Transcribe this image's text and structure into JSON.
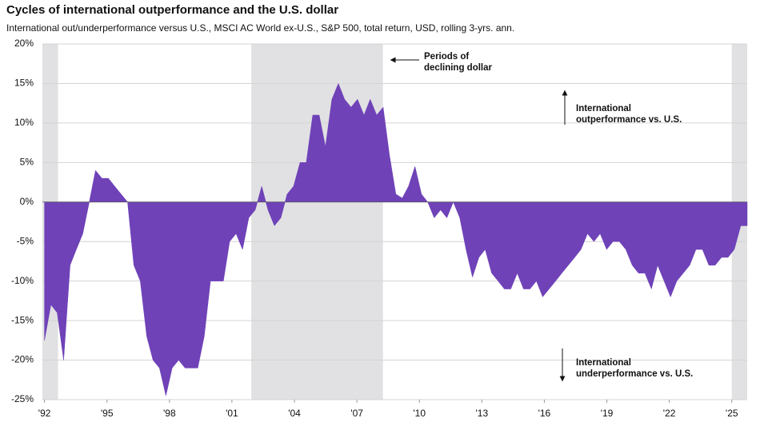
{
  "chart_data": {
    "type": "area",
    "title": "Cycles of international outperformance and the U.S. dollar",
    "subtitle": "International out/underperformance versus U.S., MSCI AC World ex-U.S., S&P 500, total return, USD, rolling 3-yrs. ann.",
    "annotations": [
      {
        "lines": [
          "Periods of",
          "declining dollar"
        ]
      },
      {
        "lines": [
          "International",
          "outperformance vs. U.S."
        ]
      },
      {
        "lines": [
          "International",
          "underperformance vs. U.S."
        ]
      }
    ],
    "shaded_periods": [
      [
        1991.9,
        1992.65
      ],
      [
        2001.93,
        2008.25
      ],
      [
        2025.0,
        2025.74
      ]
    ],
    "shade_color": "#e1e1e3",
    "color": "#6f42b8",
    "grid": true,
    "xlim": [
      1991.9,
      2025.74
    ],
    "ylim": [
      -25,
      20
    ],
    "xticks": [
      {
        "value": 1992,
        "label": "'92"
      },
      {
        "value": 1995,
        "label": "'95"
      },
      {
        "value": 1998,
        "label": "'98"
      },
      {
        "value": 2001,
        "label": "'01"
      },
      {
        "value": 2004,
        "label": "'04"
      },
      {
        "value": 2007,
        "label": "'07"
      },
      {
        "value": 2010,
        "label": "'10"
      },
      {
        "value": 2013,
        "label": "'13"
      },
      {
        "value": 2016,
        "label": "'16"
      },
      {
        "value": 2019,
        "label": "'19"
      },
      {
        "value": 2022,
        "label": "'22"
      },
      {
        "value": 2025,
        "label": "'25"
      }
    ],
    "yticks": [
      {
        "value": 20,
        "label": "20%"
      },
      {
        "value": 15,
        "label": "15%"
      },
      {
        "value": 10,
        "label": "10%"
      },
      {
        "value": 5,
        "label": "5%"
      },
      {
        "value": 0,
        "label": "0%"
      },
      {
        "value": -5,
        "label": "-5%"
      },
      {
        "value": -10,
        "label": "-10%"
      },
      {
        "value": -15,
        "label": "-15%"
      },
      {
        "value": -20,
        "label": "-20%"
      },
      {
        "value": -25,
        "label": "-25%"
      }
    ],
    "x": [
      1992.0,
      1992.31,
      1992.61,
      1992.92,
      1993.23,
      1993.53,
      1993.84,
      1994.15,
      1994.45,
      1994.76,
      1995.07,
      1995.37,
      1995.68,
      1995.99,
      1996.29,
      1996.6,
      1996.91,
      1997.21,
      1997.52,
      1997.83,
      1998.13,
      1998.44,
      1998.75,
      1999.05,
      1999.36,
      1999.67,
      1999.97,
      2000.28,
      2000.59,
      2000.89,
      2001.2,
      2001.51,
      2001.81,
      2002.12,
      2002.43,
      2002.73,
      2003.04,
      2003.35,
      2003.65,
      2003.96,
      2004.27,
      2004.57,
      2004.88,
      2005.19,
      2005.49,
      2005.8,
      2006.11,
      2006.41,
      2006.72,
      2007.03,
      2007.34,
      2007.64,
      2007.95,
      2008.26,
      2008.56,
      2008.87,
      2009.18,
      2009.48,
      2009.79,
      2010.1,
      2010.4,
      2010.71,
      2011.02,
      2011.32,
      2011.63,
      2011.94,
      2012.24,
      2012.55,
      2012.86,
      2013.16,
      2013.47,
      2013.78,
      2014.08,
      2014.39,
      2014.7,
      2015.0,
      2015.31,
      2015.62,
      2015.92,
      2016.23,
      2016.54,
      2016.84,
      2017.15,
      2017.46,
      2017.76,
      2018.07,
      2018.38,
      2018.68,
      2018.99,
      2019.3,
      2019.6,
      2019.91,
      2020.22,
      2020.52,
      2020.83,
      2021.14,
      2021.44,
      2021.75,
      2022.06,
      2022.36,
      2022.67,
      2022.98,
      2023.28,
      2023.59,
      2023.9,
      2024.2,
      2024.51,
      2024.82,
      2025.12,
      2025.43,
      2025.74
    ],
    "values": [
      -17.5,
      -13,
      -14,
      -20,
      -8,
      -6,
      -4,
      0,
      4,
      3,
      3,
      2,
      1,
      0,
      -8,
      -10,
      -17,
      -20,
      -21,
      -24.5,
      -21,
      -20,
      -21,
      -21,
      -21,
      -17,
      -10,
      -10,
      -10,
      -5,
      -4,
      -6,
      -2,
      -1,
      2,
      -1,
      -3,
      -2,
      1,
      2,
      5,
      5,
      11,
      11,
      7,
      13,
      15,
      13,
      12,
      13,
      11,
      13,
      11,
      12,
      6,
      1,
      0.5,
      2,
      4.5,
      1,
      0,
      -2,
      -1,
      -2,
      0,
      -2,
      -6,
      -9.5,
      -7,
      -6,
      -9,
      -10,
      -11,
      -11,
      -9,
      -11,
      -11,
      -10,
      -12,
      -11,
      -10,
      -9,
      -8,
      -7,
      -6,
      -4,
      -5,
      -4,
      -6,
      -5,
      -5,
      -6,
      -8,
      -9,
      -9,
      -11,
      -8,
      -10,
      -12,
      -10,
      -9,
      -8,
      -6,
      -6,
      -8,
      -8,
      -7,
      -7,
      -6,
      -3,
      -3
    ]
  }
}
